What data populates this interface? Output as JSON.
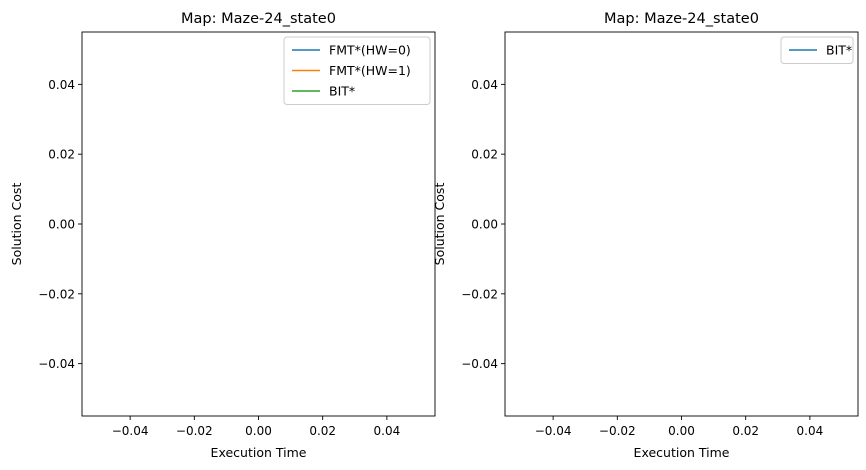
{
  "chart_data": [
    {
      "type": "line",
      "title": "Map: Maze-24_state0",
      "xlabel": "Execution Time",
      "ylabel": "Solution Cost",
      "xlim": [
        -0.055,
        0.055
      ],
      "ylim": [
        -0.055,
        0.055
      ],
      "xticks": [
        "−0.04",
        "−0.02",
        "0.00",
        "0.02",
        "0.04"
      ],
      "yticks": [
        "0.04",
        "0.02",
        "0.00",
        "−0.02",
        "−0.04"
      ],
      "grid": false,
      "legend_position": "upper right",
      "series": [
        {
          "name": "FMT*(HW=0)",
          "color": "#1f77b4",
          "x": [],
          "y": []
        },
        {
          "name": "FMT*(HW=1)",
          "color": "#ff7f0e",
          "x": [],
          "y": []
        },
        {
          "name": "BIT*",
          "color": "#2ca02c",
          "x": [],
          "y": []
        }
      ]
    },
    {
      "type": "line",
      "title": "Map: Maze-24_state0",
      "xlabel": "Execution Time",
      "ylabel": "Solution Cost",
      "xlim": [
        -0.055,
        0.055
      ],
      "ylim": [
        -0.055,
        0.055
      ],
      "xticks": [
        "−0.04",
        "−0.02",
        "0.00",
        "0.02",
        "0.04"
      ],
      "yticks": [
        "0.04",
        "0.02",
        "0.00",
        "−0.02",
        "−0.04"
      ],
      "grid": false,
      "legend_position": "upper right",
      "series": [
        {
          "name": "BIT*",
          "color": "#1f77b4",
          "x": [],
          "y": []
        }
      ]
    }
  ]
}
